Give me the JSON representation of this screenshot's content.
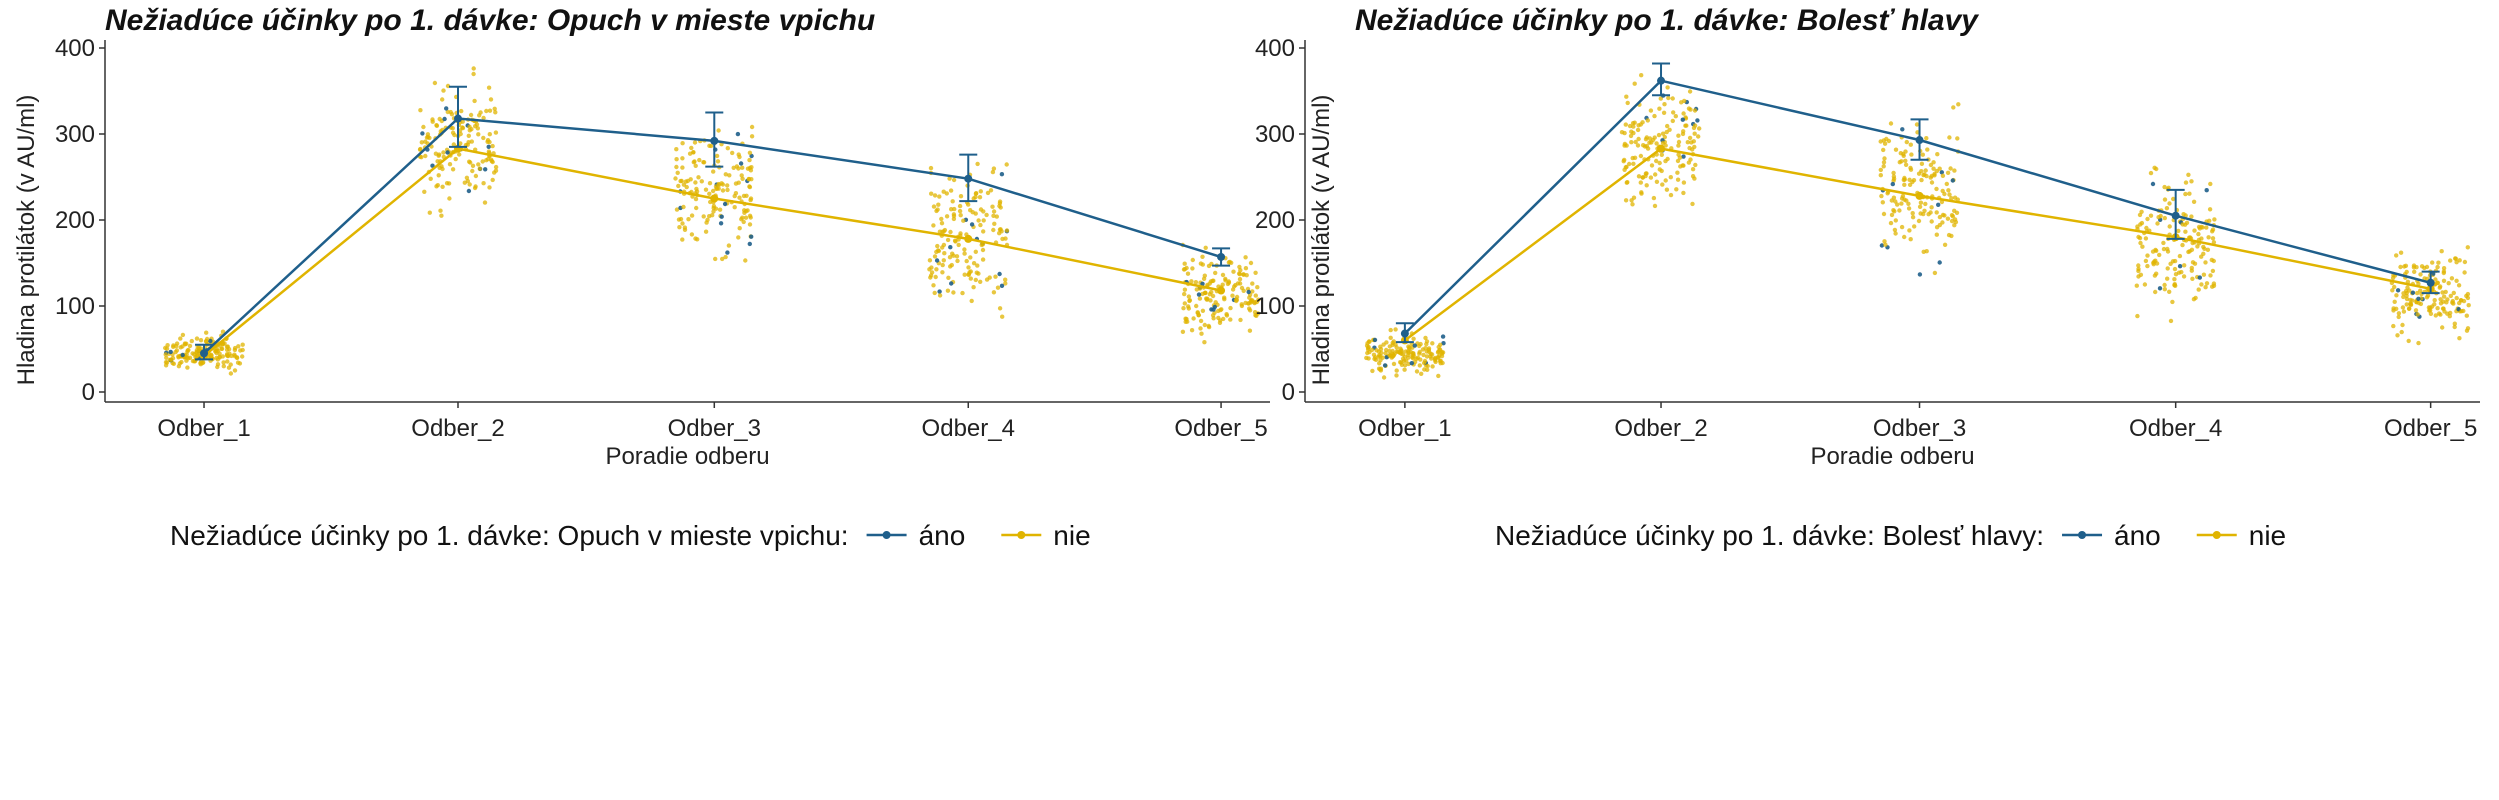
{
  "colors": {
    "ano": "#1f5f8b",
    "nie": "#e0b400",
    "axis": "#333333"
  },
  "chart_data": [
    {
      "type": "scatter",
      "title": "Nežiadúce účinky po 1. dávke: Opuch v mieste vpichu",
      "xlabel": "Poradie odberu",
      "ylabel": "Hladina protilátok (v AU/ml)",
      "categories": [
        "Odber_1",
        "Odber_2",
        "Odber_3",
        "Odber_4",
        "Odber_5"
      ],
      "ylim": [
        0,
        400
      ],
      "yticks": [
        0,
        100,
        200,
        300,
        400
      ],
      "grid": false,
      "legend": {
        "position": "bottom",
        "title": "Nežiadúce účinky po 1. dávke: Opuch v mieste vpichu:",
        "entries": [
          "áno",
          "nie"
        ]
      },
      "series": [
        {
          "name": "áno",
          "mean": [
            45,
            318,
            292,
            248,
            157
          ],
          "ci_low": [
            38,
            285,
            262,
            222,
            147
          ],
          "ci_high": [
            55,
            355,
            325,
            276,
            167
          ]
        },
        {
          "name": "nie",
          "mean": [
            42,
            283,
            225,
            178,
            118
          ]
        }
      ]
    },
    {
      "type": "scatter",
      "title": "Nežiadúce účinky po 1. dávke: Bolesť hlavy",
      "xlabel": "Poradie odberu",
      "ylabel": "Hladina protilátok (v AU/ml)",
      "categories": [
        "Odber_1",
        "Odber_2",
        "Odber_3",
        "Odber_4",
        "Odber_5"
      ],
      "ylim": [
        0,
        400
      ],
      "yticks": [
        0,
        100,
        200,
        300,
        400
      ],
      "grid": false,
      "legend": {
        "position": "bottom",
        "title": "Nežiadúce účinky po 1. dávke: Bolesť hlavy:",
        "entries": [
          "áno",
          "nie"
        ]
      },
      "series": [
        {
          "name": "áno",
          "mean": [
            68,
            362,
            293,
            205,
            127
          ],
          "ci_low": [
            58,
            345,
            270,
            178,
            115
          ],
          "ci_high": [
            80,
            382,
            317,
            235,
            140
          ]
        },
        {
          "name": "nie",
          "mean": [
            60,
            283,
            228,
            180,
            120
          ]
        }
      ]
    }
  ]
}
